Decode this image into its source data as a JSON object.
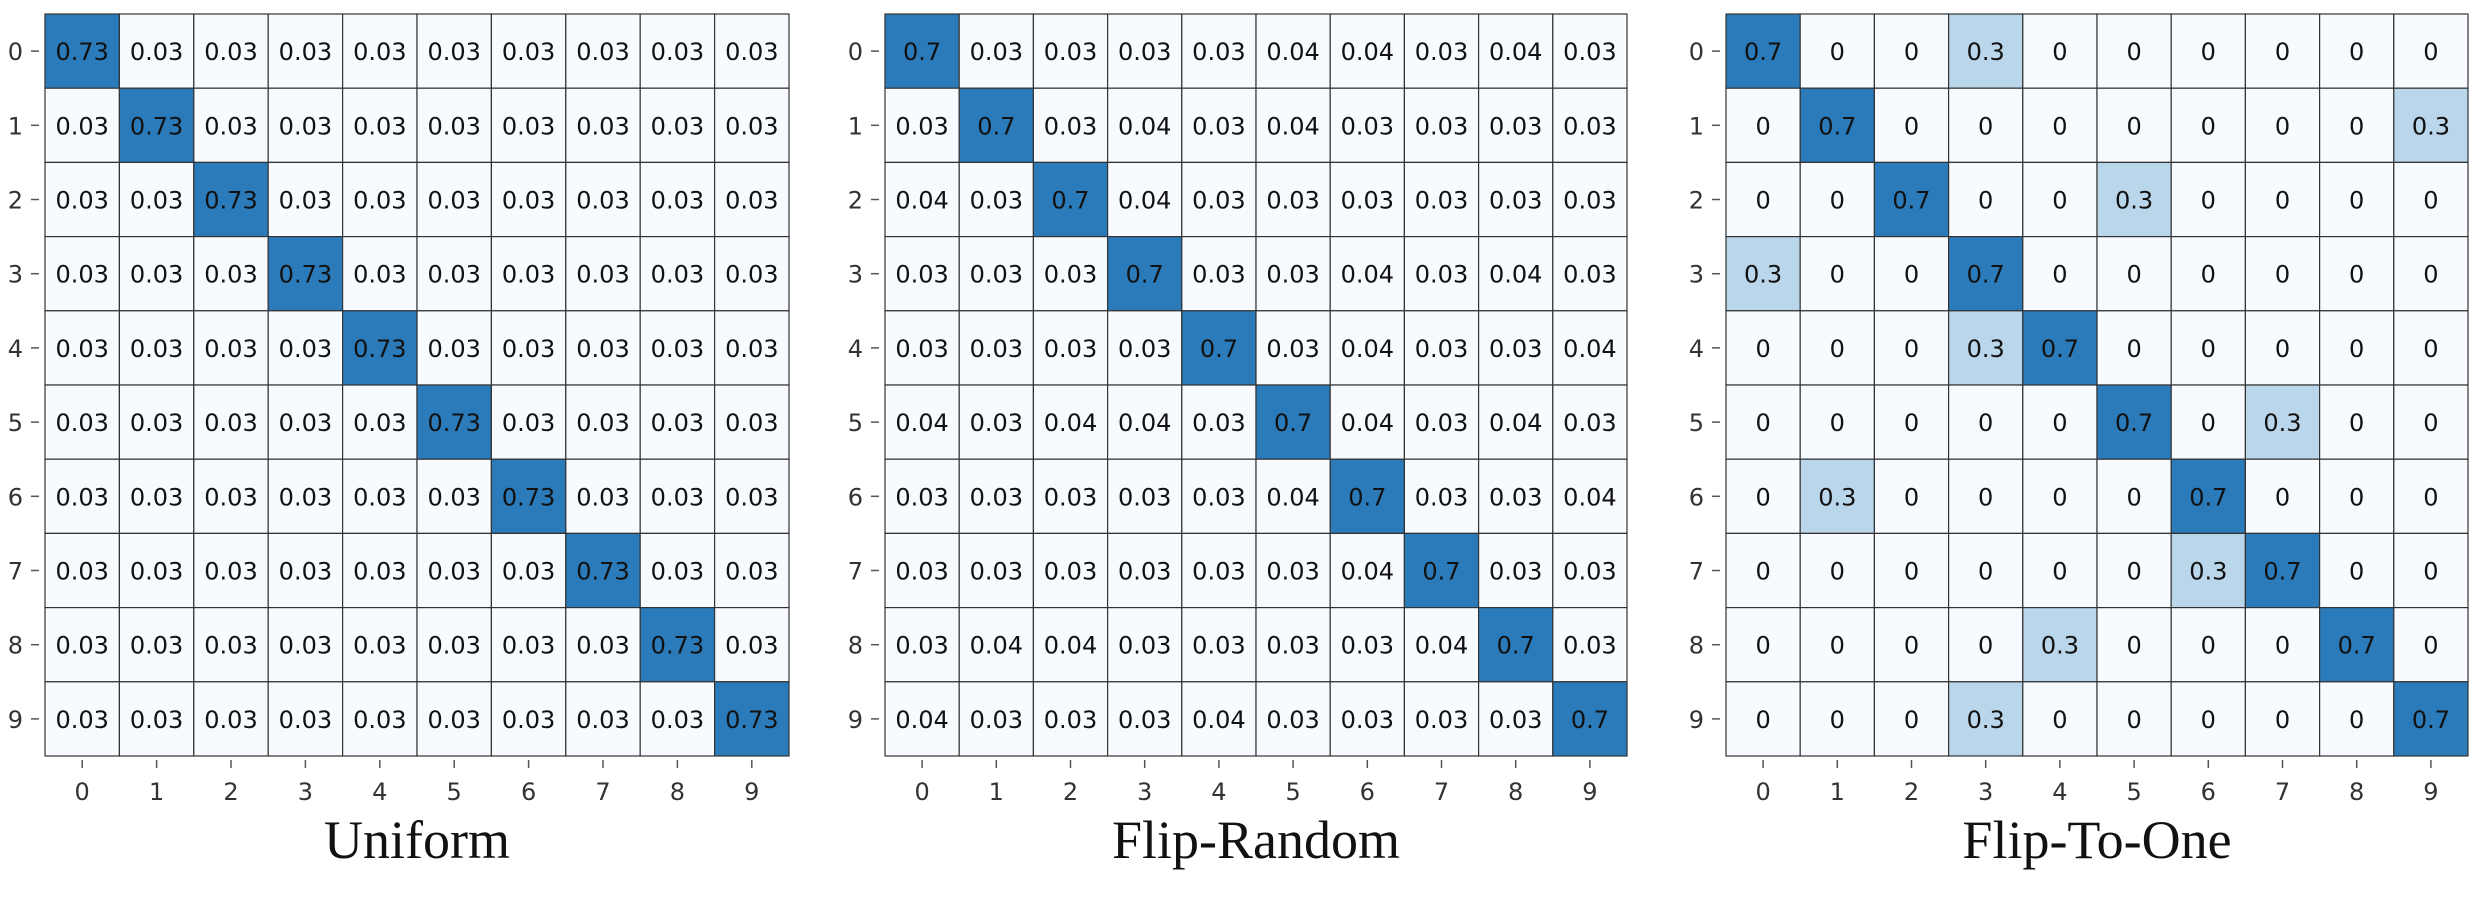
{
  "chart_data": [
    {
      "type": "heatmap",
      "title": "Uniform",
      "x": [
        "0",
        "1",
        "2",
        "3",
        "4",
        "5",
        "6",
        "7",
        "8",
        "9"
      ],
      "y": [
        "0",
        "1",
        "2",
        "3",
        "4",
        "5",
        "6",
        "7",
        "8",
        "9"
      ],
      "values": [
        [
          0.73,
          0.03,
          0.03,
          0.03,
          0.03,
          0.03,
          0.03,
          0.03,
          0.03,
          0.03
        ],
        [
          0.03,
          0.73,
          0.03,
          0.03,
          0.03,
          0.03,
          0.03,
          0.03,
          0.03,
          0.03
        ],
        [
          0.03,
          0.03,
          0.73,
          0.03,
          0.03,
          0.03,
          0.03,
          0.03,
          0.03,
          0.03
        ],
        [
          0.03,
          0.03,
          0.03,
          0.73,
          0.03,
          0.03,
          0.03,
          0.03,
          0.03,
          0.03
        ],
        [
          0.03,
          0.03,
          0.03,
          0.03,
          0.73,
          0.03,
          0.03,
          0.03,
          0.03,
          0.03
        ],
        [
          0.03,
          0.03,
          0.03,
          0.03,
          0.03,
          0.73,
          0.03,
          0.03,
          0.03,
          0.03
        ],
        [
          0.03,
          0.03,
          0.03,
          0.03,
          0.03,
          0.03,
          0.73,
          0.03,
          0.03,
          0.03
        ],
        [
          0.03,
          0.03,
          0.03,
          0.03,
          0.03,
          0.03,
          0.03,
          0.73,
          0.03,
          0.03
        ],
        [
          0.03,
          0.03,
          0.03,
          0.03,
          0.03,
          0.03,
          0.03,
          0.03,
          0.73,
          0.03
        ],
        [
          0.03,
          0.03,
          0.03,
          0.03,
          0.03,
          0.03,
          0.03,
          0.03,
          0.03,
          0.73
        ]
      ]
    },
    {
      "type": "heatmap",
      "title": "Flip-Random",
      "x": [
        "0",
        "1",
        "2",
        "3",
        "4",
        "5",
        "6",
        "7",
        "8",
        "9"
      ],
      "y": [
        "0",
        "1",
        "2",
        "3",
        "4",
        "5",
        "6",
        "7",
        "8",
        "9"
      ],
      "values": [
        [
          0.7,
          0.03,
          0.03,
          0.03,
          0.03,
          0.04,
          0.04,
          0.03,
          0.04,
          0.03
        ],
        [
          0.03,
          0.7,
          0.03,
          0.04,
          0.03,
          0.04,
          0.03,
          0.03,
          0.03,
          0.03
        ],
        [
          0.04,
          0.03,
          0.7,
          0.04,
          0.03,
          0.03,
          0.03,
          0.03,
          0.03,
          0.03
        ],
        [
          0.03,
          0.03,
          0.03,
          0.7,
          0.03,
          0.03,
          0.04,
          0.03,
          0.04,
          0.03
        ],
        [
          0.03,
          0.03,
          0.03,
          0.03,
          0.7,
          0.03,
          0.04,
          0.03,
          0.03,
          0.04
        ],
        [
          0.04,
          0.03,
          0.04,
          0.04,
          0.03,
          0.7,
          0.04,
          0.03,
          0.04,
          0.03
        ],
        [
          0.03,
          0.03,
          0.03,
          0.03,
          0.03,
          0.04,
          0.7,
          0.03,
          0.03,
          0.04
        ],
        [
          0.03,
          0.03,
          0.03,
          0.03,
          0.03,
          0.03,
          0.04,
          0.7,
          0.03,
          0.03
        ],
        [
          0.03,
          0.04,
          0.04,
          0.03,
          0.03,
          0.03,
          0.03,
          0.04,
          0.7,
          0.03
        ],
        [
          0.04,
          0.03,
          0.03,
          0.03,
          0.04,
          0.03,
          0.03,
          0.03,
          0.03,
          0.7
        ]
      ]
    },
    {
      "type": "heatmap",
      "title": "Flip-To-One",
      "x": [
        "0",
        "1",
        "2",
        "3",
        "4",
        "5",
        "6",
        "7",
        "8",
        "9"
      ],
      "y": [
        "0",
        "1",
        "2",
        "3",
        "4",
        "5",
        "6",
        "7",
        "8",
        "9"
      ],
      "values": [
        [
          0.7,
          0,
          0,
          0.3,
          0,
          0,
          0,
          0,
          0,
          0
        ],
        [
          0,
          0.7,
          0,
          0,
          0,
          0,
          0,
          0,
          0,
          0.3
        ],
        [
          0,
          0,
          0.7,
          0,
          0,
          0.3,
          0,
          0,
          0,
          0
        ],
        [
          0.3,
          0,
          0,
          0.7,
          0,
          0,
          0,
          0,
          0,
          0
        ],
        [
          0,
          0,
          0,
          0.3,
          0.7,
          0,
          0,
          0,
          0,
          0
        ],
        [
          0,
          0,
          0,
          0,
          0,
          0.7,
          0,
          0.3,
          0,
          0
        ],
        [
          0,
          0.3,
          0,
          0,
          0,
          0,
          0.7,
          0,
          0,
          0
        ],
        [
          0,
          0,
          0,
          0,
          0,
          0,
          0.3,
          0.7,
          0,
          0
        ],
        [
          0,
          0,
          0,
          0,
          0.3,
          0,
          0,
          0,
          0.7,
          0
        ],
        [
          0,
          0,
          0,
          0.3,
          0,
          0,
          0,
          0,
          0,
          0.7
        ]
      ]
    }
  ],
  "colors": {
    "high": "#2b7bba",
    "mid": "#bad6eb",
    "low": "#f7fbff",
    "grid": "#333333"
  }
}
